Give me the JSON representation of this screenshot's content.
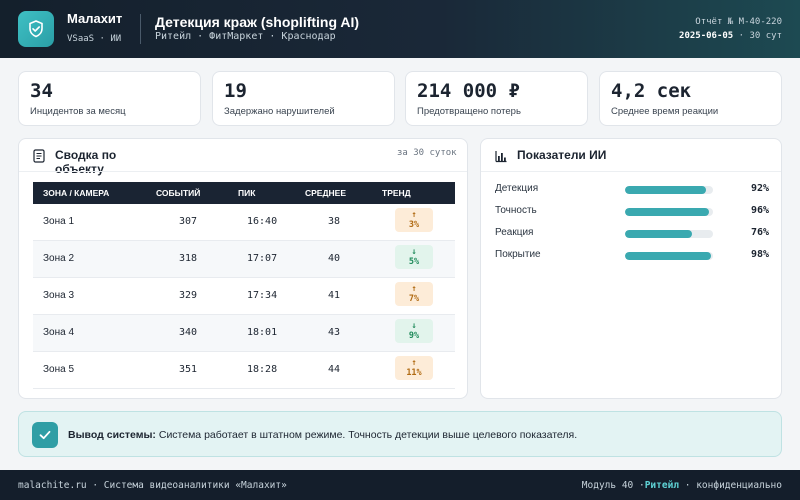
{
  "header": {
    "brand_name": "Малахит",
    "brand_sub": "VSaaS · ИИ",
    "title": "Детекция краж (shoplifting AI)",
    "subtitle": "Ритейл · ФитМаркет · Краснодар",
    "report_id": "Отчёт № M-40-220",
    "report_date": "2025-06-05",
    "report_period": "· 30 сут",
    "logo_icon": "shield-check-icon"
  },
  "kpis": [
    {
      "value": "34",
      "label": "Инцидентов за месяц"
    },
    {
      "value": "19",
      "label": "Задержано нарушителей"
    },
    {
      "value": "214 000 ₽",
      "label": "Предотвращено потерь"
    },
    {
      "value": "4,2 сек",
      "label": "Среднее время реакции"
    }
  ],
  "summary": {
    "title": "Сводка по объекту",
    "meta": "за 30 суток",
    "icon": "document-icon",
    "columns": [
      "ЗОНА / КАМЕРА",
      "СОБЫТИЙ",
      "ПИК",
      "СРЕДНЕЕ",
      "ТРЕНД"
    ],
    "rows": [
      {
        "zone": "Зона 1",
        "events": "307",
        "peak": "16:40",
        "avg": "38",
        "trend_arrow": "↑",
        "trend": "3%",
        "dir": "up"
      },
      {
        "zone": "Зона 2",
        "events": "318",
        "peak": "17:07",
        "avg": "40",
        "trend_arrow": "↓",
        "trend": "5%",
        "dir": "down"
      },
      {
        "zone": "Зона 3",
        "events": "329",
        "peak": "17:34",
        "avg": "41",
        "trend_arrow": "↑",
        "trend": "7%",
        "dir": "up"
      },
      {
        "zone": "Зона 4",
        "events": "340",
        "peak": "18:01",
        "avg": "43",
        "trend_arrow": "↓",
        "trend": "9%",
        "dir": "down"
      },
      {
        "zone": "Зона 5",
        "events": "351",
        "peak": "18:28",
        "avg": "44",
        "trend_arrow": "↑",
        "trend": "11%",
        "dir": "up"
      }
    ]
  },
  "metrics": {
    "title": "Показатели ИИ",
    "icon": "bar-chart-icon",
    "items": [
      {
        "label": "Детекция",
        "value": "92%",
        "fraction": 0.92
      },
      {
        "label": "Точность",
        "value": "96%",
        "fraction": 0.96
      },
      {
        "label": "Реакция",
        "value": "76%",
        "fraction": 0.76
      },
      {
        "label": "Покрытие",
        "value": "98%",
        "fraction": 0.98
      }
    ]
  },
  "conclusion": {
    "label": "Вывод системы:",
    "text": "Система работает в штатном режиме. Точность детекции выше целевого показателя.",
    "icon": "checkmark-icon"
  },
  "footer": {
    "left": "malachite.ru · Система видеоаналитики «Малахит»",
    "module": "Модуль 40 ·",
    "segment": "Ритейл",
    "confidential": "· конфиденциально"
  },
  "colors": {
    "accent": "#3aa9b0",
    "header_bg": "#14202c",
    "trend_up": "#b06a12",
    "trend_down": "#1f8a5a"
  }
}
